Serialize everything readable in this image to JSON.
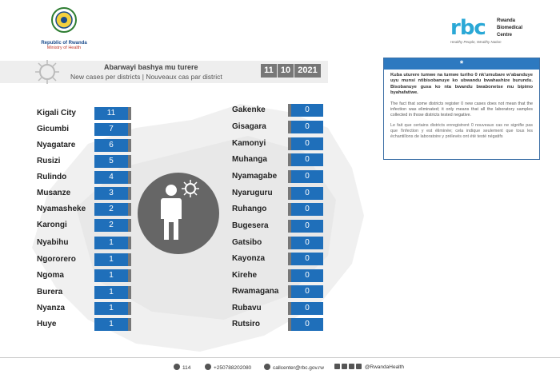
{
  "ministry": {
    "line1": "Republic of Rwanda",
    "line2": "Ministry of Health"
  },
  "rbc": {
    "letters": "rbc",
    "name_line1": "Rwanda",
    "name_line2": "Biomedical",
    "name_line3": "Centre",
    "tagline": "Healthy People, Wealthy Nation"
  },
  "header": {
    "title_rw": "Abarwayi bashya mu turere",
    "title_en_fr": "New cases per districts  |  Nouveaux cas par district",
    "date": {
      "day": "11",
      "month": "10",
      "year": "2021"
    }
  },
  "note": {
    "icon": "asterisk-icon",
    "glyph": "*",
    "text_rw": "Kuba uturere tumwe na tumwe turiho 0 nk'umubare w'abanduye uyu munsi ntibisobanuye ko ubwandu bwahashize burundu. Bisobanuye gusa ko nta bwandu bwabonetse mu bipimo byahafatiwe.",
    "text_en": "The fact that some districts register 0 new cases does not mean that the infection was eliminated; it only means that all the laboratory samples collected in those districts tested negative.",
    "text_fr": "Le fait que certains districts enregistrent 0 nouveaux cas ne signifie pas que l'infection y est éliminée; cela indique seulement que tous les échantillons de laboratoire y prélevés ont été testé négatifs"
  },
  "districts_left": [
    {
      "name": "Kigali City",
      "cases": "11"
    },
    {
      "name": "Gicumbi",
      "cases": "7"
    },
    {
      "name": "Nyagatare",
      "cases": "6"
    },
    {
      "name": "Rusizi",
      "cases": "5"
    },
    {
      "name": "Rulindo",
      "cases": "4"
    },
    {
      "name": "Musanze",
      "cases": "3"
    },
    {
      "name": "Nyamasheke",
      "cases": "2"
    },
    {
      "name": "Karongi",
      "cases": "2"
    },
    {
      "name": "Nyabihu",
      "cases": "1"
    },
    {
      "name": "Ngororero",
      "cases": "1"
    },
    {
      "name": "Ngoma",
      "cases": "1"
    },
    {
      "name": "Burera",
      "cases": "1"
    },
    {
      "name": "Nyanza",
      "cases": "1"
    },
    {
      "name": "Huye",
      "cases": "1"
    }
  ],
  "districts_right": [
    {
      "name": "Gakenke",
      "cases": "0"
    },
    {
      "name": "Gisagara",
      "cases": "0"
    },
    {
      "name": "Kamonyi",
      "cases": "0"
    },
    {
      "name": "Muhanga",
      "cases": "0"
    },
    {
      "name": "Nyamagabe",
      "cases": "0"
    },
    {
      "name": "Nyaruguru",
      "cases": "0"
    },
    {
      "name": "Ruhango",
      "cases": "0"
    },
    {
      "name": "Bugesera",
      "cases": "0"
    },
    {
      "name": "Gatsibo",
      "cases": "0"
    },
    {
      "name": "Kayonza",
      "cases": "0"
    },
    {
      "name": "Kirehe",
      "cases": "0"
    },
    {
      "name": "Rwamagana",
      "cases": "0"
    },
    {
      "name": "Rubavu",
      "cases": "0"
    },
    {
      "name": "Rutsiro",
      "cases": "0"
    }
  ],
  "footer": {
    "hotline": "114",
    "phone": "+250788202080",
    "email": "callcenter@rbc.gov.rw",
    "social": "@RwandaHealth"
  },
  "colors": {
    "accent_blue": "#1f6fba",
    "note_header": "#2d79c0",
    "divider_gray": "#777777"
  }
}
